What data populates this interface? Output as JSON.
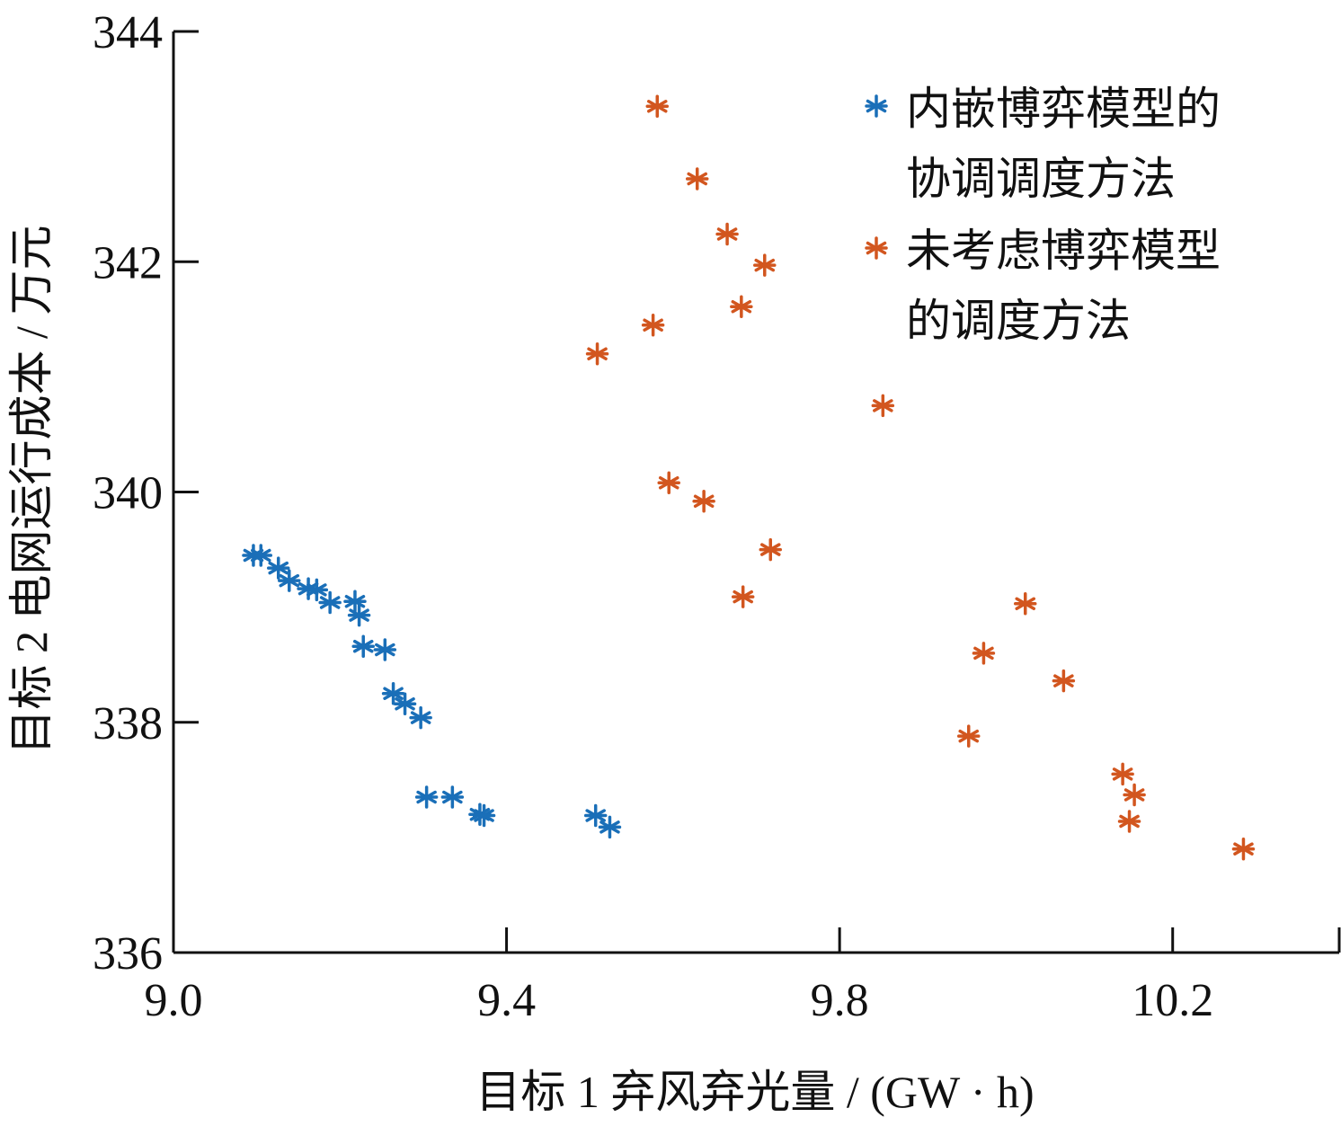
{
  "chart_data": {
    "type": "scatter",
    "title": "",
    "xlabel": "目标 1 弃风弃光量 / (GW · h)",
    "ylabel": "目标 2 电网运行成本 / 万元",
    "xlim": [
      9.0,
      10.4
    ],
    "ylim": [
      336,
      344
    ],
    "xticks": [
      9.0,
      9.4,
      9.8,
      10.2
    ],
    "xtick_labels": [
      "9.0",
      "9.4",
      "9.8",
      "10.2"
    ],
    "yticks": [
      336,
      338,
      340,
      342,
      344
    ],
    "ytick_labels": [
      "336",
      "338",
      "340",
      "342",
      "344"
    ],
    "grid": false,
    "legend_position": "top-right",
    "series": [
      {
        "name": "内嵌博弈模型的协调调度方法",
        "legend_lines": [
          "内嵌博弈模型的",
          "协调调度方法"
        ],
        "color": "#1a6fb8",
        "marker": "asterisk",
        "points": [
          [
            9.096,
            339.45
          ],
          [
            9.105,
            339.45
          ],
          [
            9.126,
            339.34
          ],
          [
            9.139,
            339.23
          ],
          [
            9.162,
            339.16
          ],
          [
            9.172,
            339.15
          ],
          [
            9.188,
            339.04
          ],
          [
            9.218,
            339.05
          ],
          [
            9.223,
            338.93
          ],
          [
            9.228,
            338.66
          ],
          [
            9.254,
            338.63
          ],
          [
            9.264,
            338.25
          ],
          [
            9.278,
            338.16
          ],
          [
            9.297,
            338.04
          ],
          [
            9.304,
            337.35
          ],
          [
            9.335,
            337.35
          ],
          [
            9.368,
            337.2
          ],
          [
            9.373,
            337.19
          ],
          [
            9.507,
            337.19
          ],
          [
            9.524,
            337.09
          ]
        ]
      },
      {
        "name": "未考虑博弈模型的调度方法",
        "legend_lines": [
          "未考虑博弈模型",
          "的调度方法"
        ],
        "color": "#d2561f",
        "marker": "asterisk",
        "points": [
          [
            9.581,
            343.35
          ],
          [
            9.629,
            342.72
          ],
          [
            9.665,
            342.24
          ],
          [
            9.71,
            341.97
          ],
          [
            9.682,
            341.61
          ],
          [
            9.576,
            341.45
          ],
          [
            9.509,
            341.2
          ],
          [
            9.852,
            340.75
          ],
          [
            9.595,
            340.08
          ],
          [
            9.637,
            339.92
          ],
          [
            9.717,
            339.5
          ],
          [
            9.684,
            339.09
          ],
          [
            10.023,
            339.03
          ],
          [
            9.973,
            338.6
          ],
          [
            10.069,
            338.36
          ],
          [
            9.955,
            337.88
          ],
          [
            10.14,
            337.55
          ],
          [
            10.154,
            337.37
          ],
          [
            10.148,
            337.14
          ],
          [
            10.285,
            336.9
          ]
        ]
      }
    ]
  }
}
